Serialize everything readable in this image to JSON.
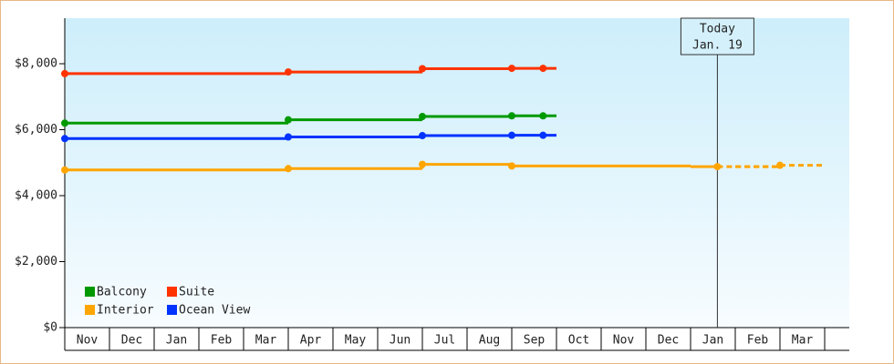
{
  "chart_data": {
    "type": "step-line",
    "categories": [
      "Nov",
      "Dec",
      "Jan",
      "Feb",
      "Mar",
      "Apr",
      "May",
      "Jun",
      "Jul",
      "Aug",
      "Sep",
      "Oct",
      "Nov",
      "Dec",
      "Jan",
      "Feb",
      "Mar"
    ],
    "series": [
      {
        "name": "Balcony",
        "color": "#009900",
        "values": [
          6200,
          6200,
          6200,
          6200,
          6200,
          6300,
          6300,
          6300,
          6400,
          6400,
          6420,
          null,
          null,
          null,
          null,
          null,
          null
        ]
      },
      {
        "name": "Suite",
        "color": "#ff3300",
        "values": [
          7700,
          7700,
          7700,
          7700,
          7700,
          7750,
          7750,
          7750,
          7850,
          7850,
          7860,
          null,
          null,
          null,
          null,
          null,
          null
        ]
      },
      {
        "name": "Interior",
        "color": "#ffa500",
        "values": [
          4780,
          4780,
          4780,
          4780,
          4780,
          4820,
          4820,
          4820,
          4950,
          4950,
          4900,
          4900,
          4900,
          4900,
          4880,
          4880,
          4920
        ]
      },
      {
        "name": "Ocean View",
        "color": "#0033ff",
        "values": [
          5730,
          5730,
          5730,
          5730,
          5730,
          5780,
          5780,
          5780,
          5820,
          5820,
          5830,
          null,
          null,
          null,
          null,
          null,
          null
        ]
      }
    ],
    "ylim": [
      0,
      9380
    ],
    "yticks": [
      {
        "value": 0,
        "label": "$0"
      },
      {
        "value": 2000,
        "label": "$2,000"
      },
      {
        "value": 4000,
        "label": "$4,000"
      },
      {
        "value": 6000,
        "label": "$6,000"
      },
      {
        "value": 8000,
        "label": "$8,000"
      }
    ],
    "today": {
      "label": "Today",
      "date": "Jan. 19",
      "category_index": 14
    }
  }
}
